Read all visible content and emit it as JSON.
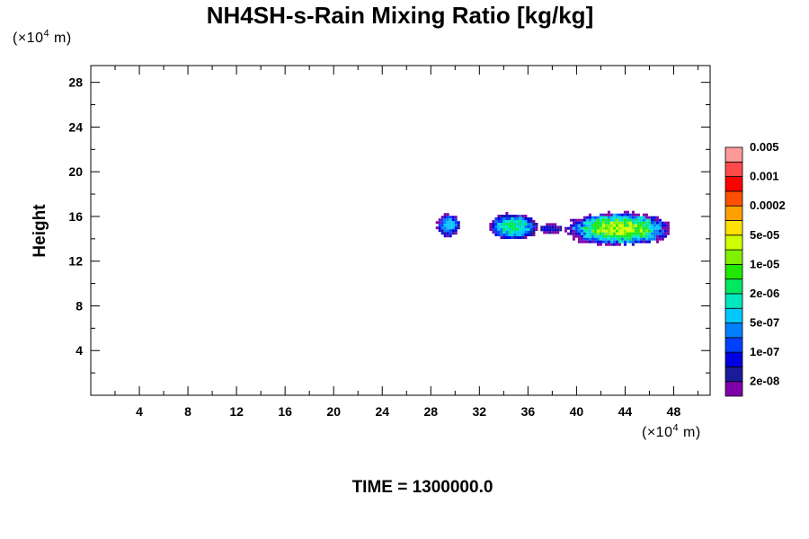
{
  "chart_data": {
    "type": "heatmap",
    "title": "NH4SH-s-Rain Mixing Ratio [kg/kg]",
    "ylabel": "Height",
    "xlabel": "",
    "x_unit_prefix": "(×10",
    "x_unit_exp": "4",
    "x_unit_suffix": " m)",
    "y_unit_prefix": "(×10",
    "y_unit_exp": "4",
    "y_unit_suffix": " m)",
    "xlim": [
      0,
      51
    ],
    "ylim": [
      0,
      29.5
    ],
    "x_ticks": [
      4,
      8,
      12,
      16,
      20,
      24,
      28,
      32,
      36,
      40,
      44,
      48
    ],
    "y_ticks": [
      4,
      8,
      12,
      16,
      20,
      24,
      28
    ],
    "colorbar": {
      "colors": [
        "#7f00a8",
        "#1a1a9a",
        "#0000e0",
        "#0040ff",
        "#007fff",
        "#00c8ff",
        "#00e8c0",
        "#00e860",
        "#20e800",
        "#80f000",
        "#d0ff00",
        "#ffe000",
        "#ffa000",
        "#ff5000",
        "#ff0000",
        "#ff4a4a",
        "#ff9a9a"
      ],
      "labels": [
        "2e-08",
        "1e-07",
        "5e-07",
        "2e-06",
        "1e-05",
        "5e-05",
        "0.0002",
        "0.001",
        "0.005"
      ]
    },
    "cloud_regions": [
      {
        "x_range": [
          28.4,
          30.3
        ],
        "y_range": [
          14.3,
          16.3
        ],
        "peak_level": 5
      },
      {
        "x_range": [
          32.6,
          36.8
        ],
        "y_range": [
          14.0,
          16.4
        ],
        "peak_level": 7
      },
      {
        "x_range": [
          36.8,
          38.8
        ],
        "y_range": [
          14.6,
          15.4
        ],
        "peak_level": 2
      },
      {
        "x_range": [
          39.0,
          47.8
        ],
        "y_range": [
          13.5,
          16.5
        ],
        "peak_level": 10
      }
    ],
    "time_label": "TIME = 1300000.0"
  }
}
